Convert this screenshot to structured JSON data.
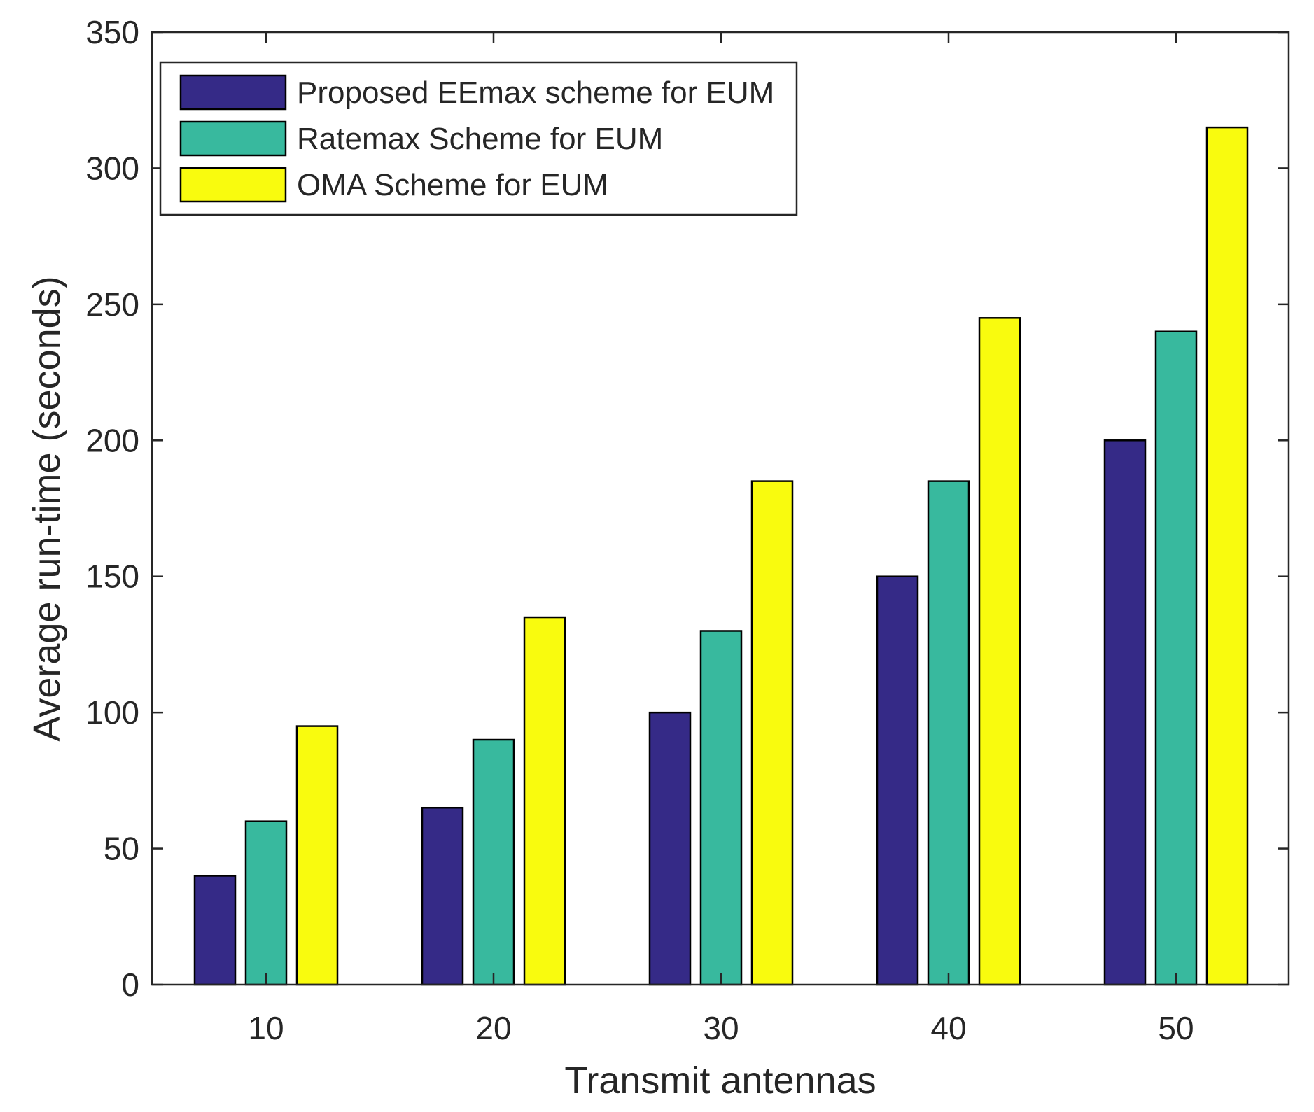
{
  "chart_data": {
    "type": "bar",
    "title": "",
    "xlabel": "Transmit antennas",
    "ylabel": "Average run-time (seconds)",
    "categories": [
      "10",
      "20",
      "30",
      "40",
      "50"
    ],
    "ylim": [
      0,
      350
    ],
    "yticks": [
      "0",
      "50",
      "100",
      "150",
      "200",
      "250",
      "300",
      "350"
    ],
    "grid": false,
    "legend_position": "top-left",
    "series": [
      {
        "name": "Proposed EEmax scheme for EUM",
        "color": "#352a87",
        "values": [
          40,
          65,
          100,
          150,
          200
        ]
      },
      {
        "name": "Ratemax Scheme for EUM",
        "color": "#38b99e",
        "values": [
          60,
          90,
          130,
          185,
          240
        ]
      },
      {
        "name": "OMA Scheme for EUM",
        "color": "#f9fb0e",
        "values": [
          95,
          135,
          185,
          245,
          315
        ]
      }
    ]
  }
}
